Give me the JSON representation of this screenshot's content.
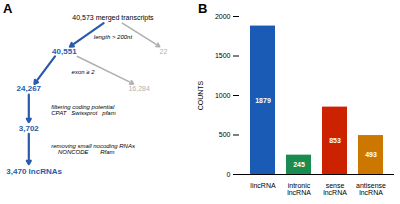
{
  "chart_data": [
    {
      "type": "flowchart",
      "title": "A",
      "annotations": [
        {
          "text": "40,573 merged transcripts",
          "color": "#000000"
        },
        {
          "text": "40,551",
          "color": "#2a5baa"
        },
        {
          "text": "22",
          "color": "#b0b0b0"
        },
        {
          "text": "length > 200nt",
          "color": "#000000"
        },
        {
          "text": "24,267",
          "color": "#2a5baa"
        },
        {
          "text": "16,284",
          "color": "#b0b0b0"
        },
        {
          "text": "exon ≥ 2",
          "color": "#000000"
        },
        {
          "text": "filtering coding potential\nCPAT   Swissprot   pfam",
          "color": "#000000"
        },
        {
          "text": "3,702",
          "color": "#2a5baa"
        },
        {
          "text": "removing small nocoding RNAs\n    NONCODE       Rfam",
          "color": "#000000"
        },
        {
          "text": "3,470 lncRNAs",
          "color": "#2a5baa"
        }
      ]
    },
    {
      "type": "bar",
      "title": "B",
      "categories": [
        "lincRNA",
        "intronic lncRNA",
        "sense lncRNA",
        "antisense lncRNA"
      ],
      "values": [
        1879,
        245,
        853,
        493
      ],
      "colors": [
        "#1a5cb5",
        "#1a8c50",
        "#cc2200",
        "#cc7700"
      ],
      "ylim": [
        0,
        2000
      ],
      "yticks": [
        0,
        500,
        1000,
        1500,
        2000
      ],
      "ylabel": "COUNTS",
      "data_labels": true
    }
  ]
}
